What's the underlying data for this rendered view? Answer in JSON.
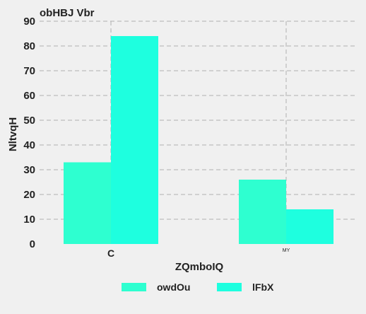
{
  "chart_data": {
    "type": "bar",
    "title": "obHBJ  Vbr",
    "xlabel": "ZQmboIQ",
    "ylabel": "NltvqH",
    "categories": [
      "C",
      "MY"
    ],
    "series": [
      {
        "name": "owdOu",
        "values": [
          33,
          26
        ],
        "color": "#2effd0"
      },
      {
        "name": "lFbX",
        "values": [
          84,
          14
        ],
        "color": "#1effdf"
      }
    ],
    "ylim": [
      0,
      90
    ],
    "yticks": [
      0,
      10,
      20,
      30,
      40,
      50,
      60,
      70,
      80,
      90
    ],
    "grid": true,
    "legend_position": "bottom"
  }
}
